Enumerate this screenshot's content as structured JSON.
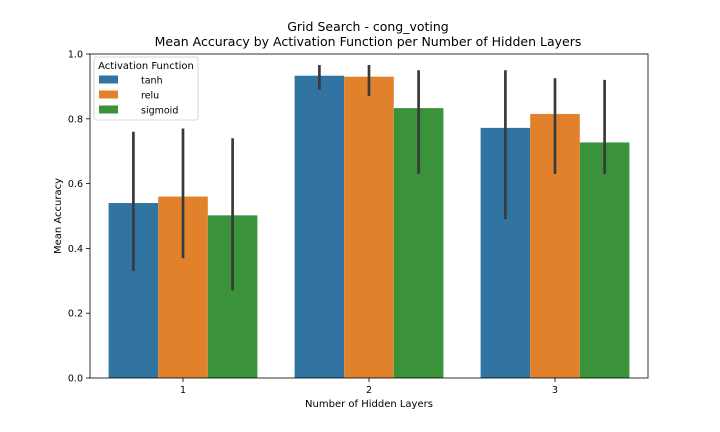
{
  "chart_data": {
    "type": "bar",
    "title": "Grid Search - cong_voting",
    "subtitle": "Mean Accuracy by Activation Function per Number of Hidden Layers",
    "xlabel": "Number of Hidden Layers",
    "ylabel": "Mean Accuracy",
    "categories": [
      "1",
      "2",
      "3"
    ],
    "ylim": [
      0.0,
      1.0
    ],
    "yticks": [
      "0.0",
      "0.2",
      "0.4",
      "0.6",
      "0.8",
      "1.0"
    ],
    "grid": false,
    "legend": {
      "title": "Activation Function",
      "placement": "top-left"
    },
    "series": [
      {
        "name": "tanh",
        "color": "#3274a1",
        "values": [
          0.54,
          0.933,
          0.772
        ],
        "ci_low": [
          0.33,
          0.89,
          0.49
        ],
        "ci_high": [
          0.76,
          0.966,
          0.95
        ]
      },
      {
        "name": "relu",
        "color": "#e1812c",
        "values": [
          0.56,
          0.93,
          0.815
        ],
        "ci_low": [
          0.37,
          0.87,
          0.63
        ],
        "ci_high": [
          0.77,
          0.966,
          0.925
        ]
      },
      {
        "name": "sigmoid",
        "color": "#3a923a",
        "values": [
          0.502,
          0.833,
          0.727
        ],
        "ci_low": [
          0.27,
          0.63,
          0.63
        ],
        "ci_high": [
          0.74,
          0.95,
          0.92
        ]
      }
    ],
    "error_bar_color": "#3a3a3a"
  }
}
